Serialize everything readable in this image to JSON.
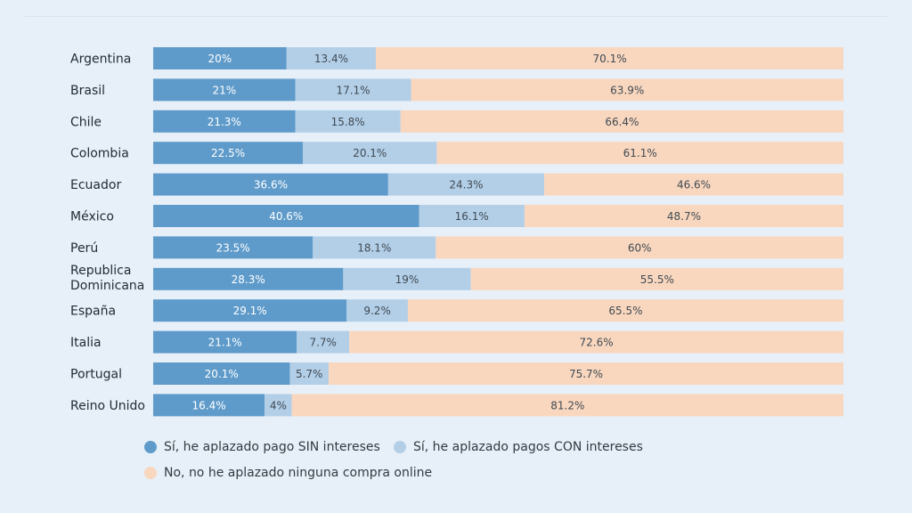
{
  "colors": {
    "sin": "#5f9bca",
    "con": "#b3cfe8",
    "no": "#f9d7bf",
    "label_dark": "#ffffff",
    "label_light": "#404a52",
    "category_text": "#1f2a33"
  },
  "chart_data": {
    "type": "bar",
    "orientation": "horizontal",
    "stacked": true,
    "categories": [
      "Argentina",
      "Brasil",
      "Chile",
      "Colombia",
      "Ecuador",
      "México",
      "Perú",
      "Republica Dominicana",
      "España",
      "Italia",
      "Portugal",
      "Reino Unido"
    ],
    "series": [
      {
        "name": "Sí, he aplazado pago SIN intereses",
        "values": [
          20,
          21,
          21.3,
          22.5,
          36.6,
          40.6,
          23.5,
          28.3,
          29.1,
          21.1,
          20.1,
          16.4
        ],
        "labels": [
          "20%",
          "21%",
          "21.3%",
          "22.5%",
          "36.6%",
          "40.6%",
          "23.5%",
          "28.3%",
          "29.1%",
          "21.1%",
          "20.1%",
          "16.4%"
        ]
      },
      {
        "name": "Sí, he aplazado pagos CON intereses",
        "values": [
          13.4,
          17.1,
          15.8,
          20.1,
          24.3,
          16.1,
          18.1,
          19,
          9.2,
          7.7,
          5.7,
          4
        ],
        "labels": [
          "13.4%",
          "17.1%",
          "15.8%",
          "20.1%",
          "24.3%",
          "16.1%",
          "18.1%",
          "19%",
          "9.2%",
          "7.7%",
          "5.7%",
          "4%"
        ]
      },
      {
        "name": "No, no he aplazado ninguna compra online",
        "values": [
          70.1,
          63.9,
          66.4,
          61.1,
          46.6,
          48.7,
          60,
          55.5,
          65.5,
          72.6,
          75.7,
          81.2
        ],
        "labels": [
          "70.1%",
          "63.9%",
          "66.4%",
          "61.1%",
          "46.6%",
          "48.7%",
          "60%",
          "55.5%",
          "65.5%",
          "72.6%",
          "75.7%",
          "81.2%"
        ]
      }
    ],
    "grid": false,
    "legend_position": "bottom"
  },
  "legend": {
    "sin_label": "Sí, he aplazado pago SIN intereses",
    "con_label": "Sí, he aplazado pagos CON intereses",
    "no_label": "No, no he aplazado ninguna compra online"
  }
}
